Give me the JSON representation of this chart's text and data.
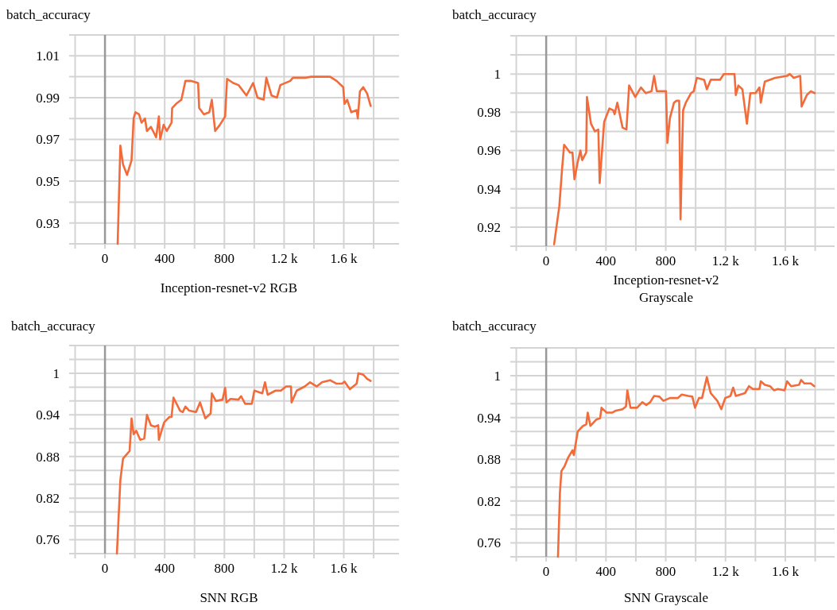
{
  "chart_data": [
    {
      "type": "line",
      "title": "batch_accuracy",
      "xlabel": "Inception-resnet-v2 RGB",
      "grid": true,
      "marker": "none",
      "line_style": "solid",
      "xlim": [
        -240,
        1970
      ],
      "ylim": [
        0.92,
        1.02
      ],
      "xticks": [
        {
          "value": -200,
          "label": null
        },
        0,
        {
          "value": 200,
          "label": null
        },
        400,
        {
          "value": 600,
          "label": null
        },
        800,
        {
          "value": 1000,
          "label": null
        },
        {
          "value": 1200,
          "label": "1.2 k"
        },
        {
          "value": 1400,
          "label": null
        },
        {
          "value": 1600,
          "label": "1.6 k"
        },
        {
          "value": 1800,
          "label": null
        }
      ],
      "yticks": [
        {
          "value": 0.92,
          "label": null
        },
        0.93,
        {
          "value": 0.94,
          "label": null
        },
        0.95,
        {
          "value": 0.96,
          "label": null
        },
        0.97,
        {
          "value": 0.98,
          "label": null
        },
        0.99,
        {
          "value": 1.0,
          "label": null
        },
        1.01,
        {
          "value": 1.02,
          "label": null
        }
      ],
      "series": [
        {
          "color": "#f26b3a",
          "x": [
            85,
            103,
            121,
            148,
            178,
            192,
            204,
            228,
            245,
            268,
            281,
            308,
            343,
            361,
            370,
            393,
            414,
            446,
            450,
            476,
            512,
            539,
            574,
            624,
            631,
            663,
            699,
            716,
            738,
            770,
            805,
            818,
            859,
            895,
            948,
            992,
            1022,
            1063,
            1081,
            1116,
            1152,
            1175,
            1241,
            1259,
            1339,
            1383,
            1508,
            1552,
            1596,
            1605,
            1623,
            1650,
            1686,
            1694,
            1708,
            1730,
            1756,
            1780
          ],
          "values": [
            0.92,
            0.967,
            0.958,
            0.953,
            0.96,
            0.98,
            0.983,
            0.982,
            0.978,
            0.98,
            0.974,
            0.976,
            0.971,
            0.981,
            0.97,
            0.977,
            0.974,
            0.978,
            0.985,
            0.987,
            0.989,
            0.998,
            0.998,
            0.997,
            0.985,
            0.982,
            0.983,
            0.989,
            0.974,
            0.977,
            0.981,
            0.999,
            0.997,
            0.996,
            0.991,
            0.997,
            0.99,
            0.989,
            0.9995,
            0.991,
            0.99,
            0.996,
            0.998,
            0.9995,
            0.9995,
            1.0,
            1.0,
            0.998,
            0.995,
            0.987,
            0.989,
            0.983,
            0.984,
            0.98,
            0.993,
            0.995,
            0.992,
            0.986
          ]
        }
      ]
    },
    {
      "type": "line",
      "title": "batch_accuracy",
      "xlabel": "Inception-resnet-v2\nGrayscale",
      "grid": true,
      "marker": "none",
      "line_style": "solid",
      "xlim": [
        -240,
        1930
      ],
      "ylim": [
        0.91,
        1.02
      ],
      "xticks": [
        {
          "value": -200,
          "label": null
        },
        0,
        {
          "value": 200,
          "label": null
        },
        400,
        {
          "value": 600,
          "label": null
        },
        800,
        {
          "value": 1000,
          "label": null
        },
        {
          "value": 1200,
          "label": "1.2 k"
        },
        {
          "value": 1400,
          "label": null
        },
        {
          "value": 1600,
          "label": "1.6 k"
        },
        {
          "value": 1800,
          "label": null
        }
      ],
      "yticks": [
        {
          "value": 0.91,
          "label": null
        },
        0.92,
        {
          "value": 0.93,
          "label": null
        },
        0.94,
        {
          "value": 0.95,
          "label": null
        },
        0.96,
        {
          "value": 0.97,
          "label": null
        },
        0.98,
        {
          "value": 0.99,
          "label": null
        },
        1,
        {
          "value": 1.01,
          "label": null
        },
        {
          "value": 1.02,
          "label": null
        }
      ],
      "series": [
        {
          "color": "#f26b3a",
          "x": [
            53,
            88,
            106,
            120,
            159,
            176,
            189,
            211,
            229,
            241,
            268,
            273,
            300,
            326,
            349,
            358,
            388,
            423,
            449,
            458,
            476,
            511,
            537,
            555,
            596,
            634,
            666,
            705,
            722,
            740,
            802,
            811,
            828,
            855,
            872,
            890,
            899,
            916,
            934,
            969,
            987,
            1008,
            1057,
            1075,
            1101,
            1163,
            1189,
            1260,
            1269,
            1286,
            1313,
            1343,
            1366,
            1401,
            1427,
            1436,
            1463,
            1533,
            1612,
            1630,
            1656,
            1700,
            1709,
            1744,
            1771,
            1797
          ],
          "values": [
            0.911,
            0.931,
            0.95,
            0.963,
            0.959,
            0.959,
            0.945,
            0.954,
            0.96,
            0.955,
            0.959,
            0.988,
            0.974,
            0.97,
            0.971,
            0.943,
            0.975,
            0.982,
            0.981,
            0.979,
            0.985,
            0.972,
            0.971,
            0.994,
            0.988,
            0.993,
            0.99,
            0.991,
            0.999,
            0.991,
            0.991,
            0.964,
            0.977,
            0.985,
            0.986,
            0.986,
            0.924,
            0.981,
            0.985,
            0.99,
            0.991,
            0.998,
            0.997,
            0.992,
            0.997,
            0.997,
            1.0,
            1.0,
            0.989,
            0.994,
            0.992,
            0.974,
            0.99,
            0.99,
            0.993,
            0.985,
            0.996,
            0.998,
            0.999,
            1.0,
            0.998,
            0.999,
            0.983,
            0.989,
            0.991,
            0.99
          ]
        }
      ]
    },
    {
      "type": "line",
      "title": "batch_accuracy",
      "xlabel": "SNN RGB",
      "grid": true,
      "marker": "none",
      "line_style": "solid",
      "xlim": [
        -240,
        1970
      ],
      "ylim": [
        0.74,
        1.04
      ],
      "xticks": [
        {
          "value": -200,
          "label": null
        },
        0,
        {
          "value": 200,
          "label": null
        },
        400,
        {
          "value": 600,
          "label": null
        },
        800,
        {
          "value": 1000,
          "label": null
        },
        {
          "value": 1200,
          "label": "1.2 k"
        },
        {
          "value": 1400,
          "label": null
        },
        {
          "value": 1600,
          "label": "1.6 k"
        },
        {
          "value": 1800,
          "label": null
        }
      ],
      "yticks": [
        {
          "value": 0.74,
          "label": null
        },
        0.76,
        {
          "value": 0.78,
          "label": null
        },
        {
          "value": 0.8,
          "label": null
        },
        0.82,
        {
          "value": 0.84,
          "label": null
        },
        {
          "value": 0.86,
          "label": null
        },
        0.88,
        {
          "value": 0.9,
          "label": null
        },
        {
          "value": 0.92,
          "label": null
        },
        0.94,
        {
          "value": 0.96,
          "label": null
        },
        {
          "value": 0.98,
          "label": null
        },
        1,
        {
          "value": 1.02,
          "label": null
        },
        {
          "value": 1.04,
          "label": null
        }
      ],
      "series": [
        {
          "color": "#f26b3a",
          "x": [
            80,
            103,
            121,
            165,
            178,
            192,
            210,
            236,
            263,
            281,
            308,
            334,
            357,
            361,
            396,
            432,
            446,
            459,
            503,
            521,
            539,
            565,
            610,
            637,
            672,
            708,
            716,
            743,
            788,
            805,
            814,
            841,
            894,
            912,
            939,
            984,
            1001,
            1054,
            1072,
            1090,
            1143,
            1179,
            1214,
            1246,
            1250,
            1285,
            1339,
            1374,
            1419,
            1454,
            1508,
            1552,
            1588,
            1605,
            1641,
            1686,
            1698,
            1730,
            1756,
            1780
          ],
          "values": [
            0.74,
            0.846,
            0.877,
            0.888,
            0.935,
            0.912,
            0.917,
            0.904,
            0.906,
            0.94,
            0.925,
            0.923,
            0.925,
            0.904,
            0.929,
            0.937,
            0.937,
            0.965,
            0.946,
            0.944,
            0.952,
            0.946,
            0.944,
            0.958,
            0.935,
            0.942,
            0.971,
            0.96,
            0.962,
            0.979,
            0.958,
            0.963,
            0.962,
            0.967,
            0.956,
            0.956,
            0.975,
            0.971,
            0.987,
            0.969,
            0.975,
            0.975,
            0.981,
            0.981,
            0.958,
            0.975,
            0.981,
            0.987,
            0.981,
            0.987,
            0.99,
            0.985,
            0.985,
            0.988,
            0.977,
            0.985,
            1.0,
            0.998,
            0.992,
            0.989
          ]
        }
      ]
    },
    {
      "type": "line",
      "title": "batch_accuracy",
      "xlabel": "SNN Grayscale",
      "grid": true,
      "marker": "none",
      "line_style": "solid",
      "xlim": [
        -240,
        1930
      ],
      "ylim": [
        0.74,
        1.04
      ],
      "xticks": [
        {
          "value": -200,
          "label": null
        },
        0,
        {
          "value": 200,
          "label": null
        },
        400,
        {
          "value": 600,
          "label": null
        },
        800,
        {
          "value": 1000,
          "label": null
        },
        {
          "value": 1200,
          "label": "1.2 k"
        },
        {
          "value": 1400,
          "label": null
        },
        {
          "value": 1600,
          "label": "1.6 k"
        },
        {
          "value": 1800,
          "label": null
        }
      ],
      "yticks": [
        {
          "value": 0.74,
          "label": null
        },
        0.76,
        {
          "value": 0.78,
          "label": null
        },
        {
          "value": 0.8,
          "label": null
        },
        0.82,
        {
          "value": 0.84,
          "label": null
        },
        {
          "value": 0.86,
          "label": null
        },
        0.88,
        {
          "value": 0.9,
          "label": null
        },
        {
          "value": 0.92,
          "label": null
        },
        0.94,
        {
          "value": 0.96,
          "label": null
        },
        {
          "value": 0.98,
          "label": null
        },
        1,
        {
          "value": 1.02,
          "label": null
        },
        {
          "value": 1.04,
          "label": null
        }
      ],
      "series": [
        {
          "color": "#f26b3a",
          "x": [
            79,
            92,
            102,
            123,
            146,
            176,
            185,
            211,
            247,
            268,
            278,
            296,
            335,
            361,
            370,
            405,
            441,
            467,
            511,
            534,
            543,
            564,
            608,
            643,
            670,
            696,
            722,
            758,
            784,
            828,
            881,
            907,
            951,
            978,
            996,
            1022,
            1043,
            1075,
            1101,
            1145,
            1172,
            1198,
            1233,
            1251,
            1269,
            1330,
            1357,
            1383,
            1427,
            1436,
            1463,
            1498,
            1524,
            1551,
            1595,
            1612,
            1639,
            1692,
            1706,
            1727,
            1771,
            1794
          ],
          "values": [
            0.74,
            0.832,
            0.863,
            0.87,
            0.882,
            0.893,
            0.886,
            0.92,
            0.928,
            0.93,
            0.947,
            0.928,
            0.937,
            0.939,
            0.954,
            0.947,
            0.947,
            0.95,
            0.952,
            0.956,
            0.979,
            0.954,
            0.954,
            0.962,
            0.958,
            0.962,
            0.971,
            0.97,
            0.964,
            0.968,
            0.968,
            0.973,
            0.971,
            0.97,
            0.954,
            0.968,
            0.968,
            0.998,
            0.975,
            0.964,
            0.952,
            0.968,
            0.971,
            0.983,
            0.971,
            0.975,
            0.985,
            0.981,
            0.981,
            0.992,
            0.987,
            0.985,
            0.979,
            0.981,
            0.979,
            0.992,
            0.985,
            0.987,
            0.994,
            0.989,
            0.989,
            0.985
          ]
        }
      ]
    }
  ]
}
